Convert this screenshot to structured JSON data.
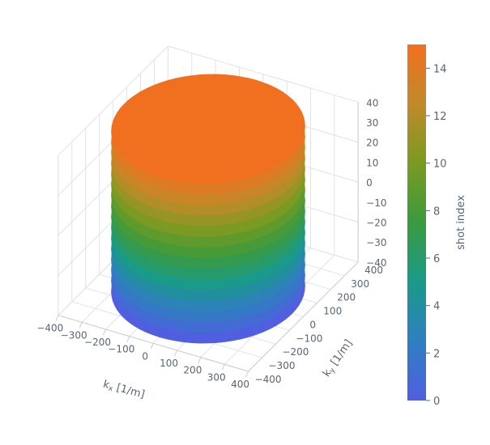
{
  "chart_data": {
    "type": "3d-scatter",
    "x_axis": {
      "label_main": "k",
      "label_sub": "x",
      "label_unit": " [1/m]",
      "range": [
        -400,
        400
      ],
      "ticks": [
        "−400",
        "−300",
        "−200",
        "−100",
        "0",
        "100",
        "200",
        "300",
        "400"
      ]
    },
    "y_axis": {
      "label_main": "k",
      "label_sub": "y",
      "label_unit": " [1/m]",
      "range": [
        -400,
        400
      ],
      "ticks": [
        "−400",
        "−300",
        "−200",
        "−100",
        "0",
        "100",
        "200",
        "300",
        "400"
      ]
    },
    "z_axis": {
      "label_main": "",
      "range": [
        -40,
        40
      ],
      "ticks": [
        "−40",
        "−30",
        "−20",
        "−10",
        "0",
        "10",
        "20",
        "30",
        "40"
      ]
    },
    "colorbar": {
      "title": "shot index",
      "range": [
        0,
        15
      ],
      "ticks": [
        "0",
        "2",
        "4",
        "6",
        "8",
        "10",
        "12",
        "14"
      ],
      "colors": [
        "#4f5fe0",
        "#2f7fc0",
        "#1a9a88",
        "#3a9a3e",
        "#7a9a22",
        "#c08a2a",
        "#f07020"
      ]
    },
    "series": {
      "shots": 16,
      "shape": "stacked circular rings (cylinder)",
      "radius": 350,
      "z_range": [
        -40,
        40
      ]
    }
  }
}
